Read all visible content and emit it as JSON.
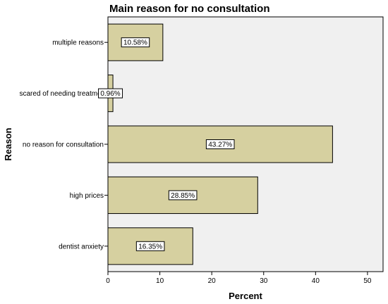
{
  "chart_data": {
    "type": "bar",
    "orientation": "horizontal",
    "title": "Main reason for no consultation",
    "xlabel": "Percent",
    "ylabel": "Reason",
    "categories": [
      "multiple reasons",
      "scared of needing treatmer",
      "no reason for consultation",
      "high prices",
      "dentist anxiety"
    ],
    "values": [
      10.58,
      0.96,
      43.27,
      28.85,
      16.35
    ],
    "data_labels": [
      "10.58%",
      "0.96%",
      "43.27%",
      "28.85%",
      "16.35%"
    ],
    "xlim": [
      0,
      53
    ],
    "xticks": [
      0,
      10,
      20,
      30,
      40,
      50
    ],
    "grid": false,
    "colors": {
      "bar": "#d6d0a0",
      "plot_background": "#f0f0f0"
    }
  }
}
